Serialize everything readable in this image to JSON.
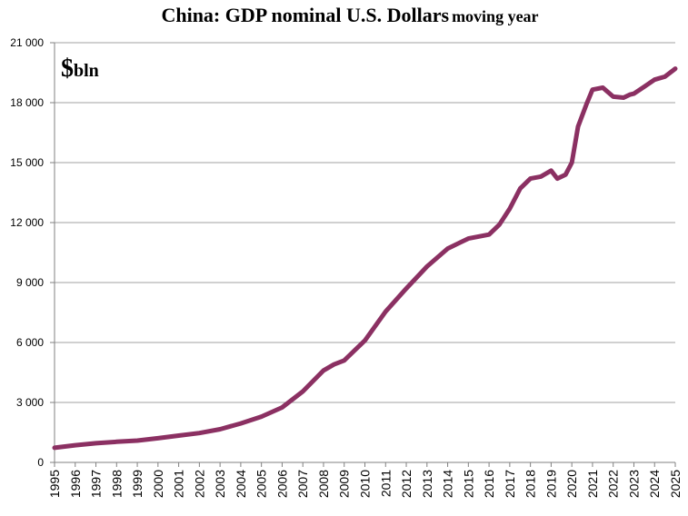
{
  "chart_data": {
    "type": "line",
    "title": "China: GDP nominal U.S. Dollars",
    "subtitle": "moving year",
    "unit_symbol": "$",
    "unit": "bln",
    "x": [
      1995,
      1996,
      1997,
      1998,
      1999,
      2000,
      2001,
      2002,
      2003,
      2004,
      2005,
      2006,
      2007,
      2008,
      2008.5,
      2009,
      2010,
      2011,
      2012,
      2013,
      2014,
      2015,
      2016,
      2016.5,
      2017,
      2017.5,
      2018,
      2018.5,
      2019,
      2019.3,
      2019.7,
      2020,
      2020.3,
      2020.7,
      2021,
      2021.5,
      2022,
      2022.5,
      2022.8,
      2023,
      2023.5,
      2024,
      2024.5,
      2025
    ],
    "series": [
      {
        "name": "GDP",
        "color": "#8b3062",
        "values": [
          730,
          860,
          960,
          1030,
          1090,
          1210,
          1340,
          1470,
          1660,
          1950,
          2290,
          2750,
          3550,
          4600,
          4900,
          5100,
          6100,
          7550,
          8700,
          9800,
          10700,
          11200,
          11400,
          11900,
          12700,
          13700,
          14200,
          14300,
          14600,
          14200,
          14400,
          15000,
          16800,
          17900,
          18650,
          18750,
          18300,
          18250,
          18400,
          18450,
          18800,
          19150,
          19300,
          19700
        ]
      }
    ],
    "xlim": [
      1995,
      2025
    ],
    "xticks": [
      1995,
      1996,
      1997,
      1998,
      1999,
      2000,
      2001,
      2002,
      2003,
      2004,
      2005,
      2006,
      2007,
      2008,
      2009,
      2010,
      2011,
      2012,
      2013,
      2014,
      2015,
      2016,
      2017,
      2018,
      2019,
      2020,
      2021,
      2022,
      2023,
      2024,
      2025
    ],
    "ylim": [
      0,
      21000
    ],
    "yticks": [
      0,
      {
        "value": 3000,
        "label": "3 000"
      },
      {
        "value": 6000,
        "label": "6 000"
      },
      {
        "value": 9000,
        "label": "9 000"
      },
      {
        "value": 12000,
        "label": "12 000"
      },
      {
        "value": 15000,
        "label": "15 000"
      },
      {
        "value": 18000,
        "label": "18 000"
      },
      {
        "value": 21000,
        "label": "21 000"
      }
    ],
    "grid": true
  }
}
